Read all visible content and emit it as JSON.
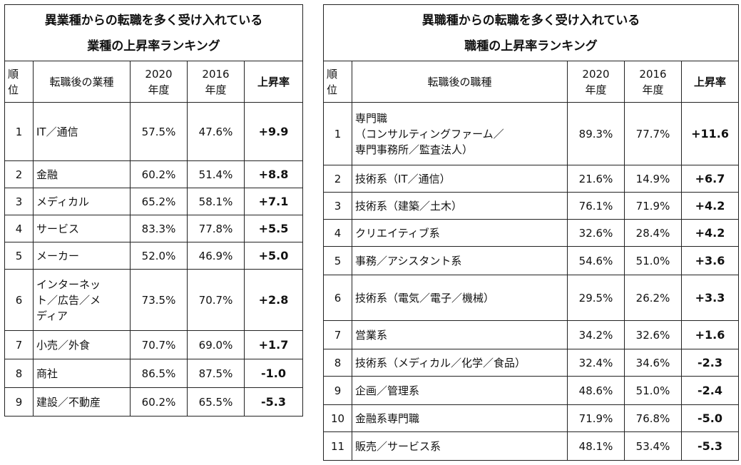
{
  "left": {
    "title_line1": "異業種からの転職を多く受け入れている",
    "title_line2": "業種の上昇率ランキング",
    "headers": {
      "rank": "順\n位",
      "name": "転職後の業種",
      "y2020": "2020\n年度",
      "y2016": "2016\n年度",
      "rate": "上昇率"
    },
    "rows": [
      {
        "rank": "1",
        "name": "IT／通信",
        "y2020": "57.5%",
        "y2016": "47.6%",
        "rate": "+9.9"
      },
      {
        "rank": "2",
        "name": "金融",
        "y2020": "60.2%",
        "y2016": "51.4%",
        "rate": "+8.8"
      },
      {
        "rank": "3",
        "name": "メディカル",
        "y2020": "65.2%",
        "y2016": "58.1%",
        "rate": "+7.1"
      },
      {
        "rank": "4",
        "name": "サービス",
        "y2020": "83.3%",
        "y2016": "77.8%",
        "rate": "+5.5"
      },
      {
        "rank": "5",
        "name": "メーカー",
        "y2020": "52.0%",
        "y2016": "46.9%",
        "rate": "+5.0"
      },
      {
        "rank": "6",
        "name": "インターネッ\nト／広告／メ\nディア",
        "y2020": "73.5%",
        "y2016": "70.7%",
        "rate": "+2.8"
      },
      {
        "rank": "7",
        "name": "小売／外食",
        "y2020": "70.7%",
        "y2016": "69.0%",
        "rate": "+1.7"
      },
      {
        "rank": "8",
        "name": "商社",
        "y2020": "86.5%",
        "y2016": "87.5%",
        "rate": "-1.0"
      },
      {
        "rank": "9",
        "name": "建設／不動産",
        "y2020": "60.2%",
        "y2016": "65.5%",
        "rate": "-5.3"
      }
    ]
  },
  "right": {
    "title_line1": "異職種からの転職を多く受け入れている",
    "title_line2": "職種の上昇率ランキング",
    "headers": {
      "rank": "順\n位",
      "name": "転職後の職種",
      "y2020": "2020\n年度",
      "y2016": "2016\n年度",
      "rate": "上昇率"
    },
    "rows": [
      {
        "rank": "1",
        "name": "専門職\n（コンサルティングファーム／\n専門事務所／監査法人）",
        "y2020": "89.3%",
        "y2016": "77.7%",
        "rate": "+11.6"
      },
      {
        "rank": "2",
        "name": "技術系（IT／通信）",
        "y2020": "21.6%",
        "y2016": "14.9%",
        "rate": "+6.7"
      },
      {
        "rank": "3",
        "name": "技術系（建築／土木）",
        "y2020": "76.1%",
        "y2016": "71.9%",
        "rate": "+4.2"
      },
      {
        "rank": "4",
        "name": "クリエイティブ系",
        "y2020": "32.6%",
        "y2016": "28.4%",
        "rate": "+4.2"
      },
      {
        "rank": "5",
        "name": "事務／アシスタント系",
        "y2020": "54.6%",
        "y2016": "51.0%",
        "rate": "+3.6"
      },
      {
        "rank": "6",
        "name": "技術系（電気／電子／機械）",
        "y2020": "29.5%",
        "y2016": "26.2%",
        "rate": "+3.3"
      },
      {
        "rank": "7",
        "name": "営業系",
        "y2020": "34.2%",
        "y2016": "32.6%",
        "rate": "+1.6"
      },
      {
        "rank": "8",
        "name": "技術系（メディカル／化学／食品）",
        "y2020": "32.4%",
        "y2016": "34.6%",
        "rate": "-2.3"
      },
      {
        "rank": "9",
        "name": "企画／管理系",
        "y2020": "48.6%",
        "y2016": "51.0%",
        "rate": "-2.4"
      },
      {
        "rank": "10",
        "name": "金融系専門職",
        "y2020": "71.9%",
        "y2016": "76.8%",
        "rate": "-5.0"
      },
      {
        "rank": "11",
        "name": "販売／サービス系",
        "y2020": "48.1%",
        "y2016": "53.4%",
        "rate": "-5.3"
      }
    ]
  }
}
